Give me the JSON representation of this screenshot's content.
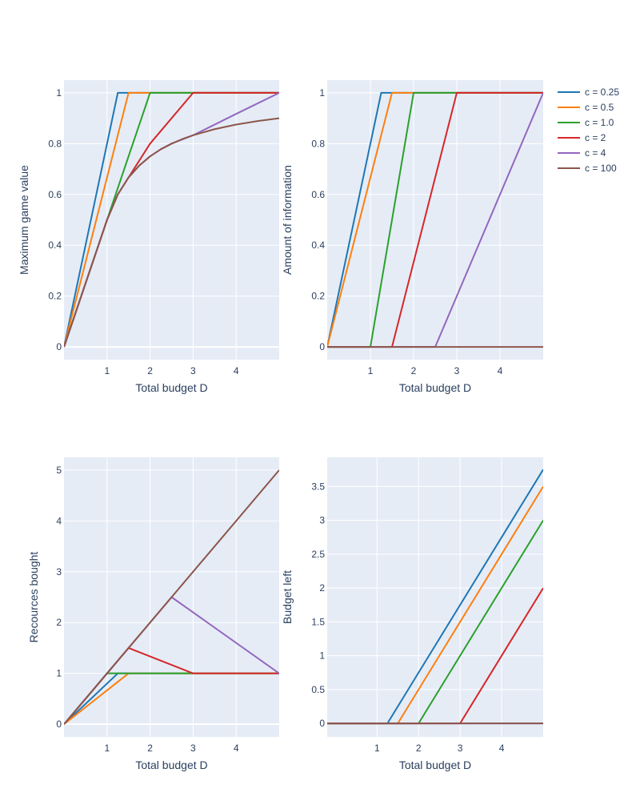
{
  "figure": {
    "legend": [
      {
        "name": "c = 0.25",
        "color": "#1f77b4"
      },
      {
        "name": "c = 0.5",
        "color": "#ff7f0e"
      },
      {
        "name": "c = 1.0",
        "color": "#2ca02c"
      },
      {
        "name": "c = 2",
        "color": "#d62728"
      },
      {
        "name": "c = 4",
        "color": "#9467bd"
      },
      {
        "name": "c = 100",
        "color": "#8c564b"
      }
    ],
    "plot_bg": "#e5ecf6",
    "grid_color": "#ffffff"
  },
  "chart_data": [
    {
      "type": "line",
      "xlabel": "Total budget D",
      "ylabel": "Maximum game value",
      "xlim": [
        0,
        5
      ],
      "ylim": [
        -0.05,
        1.05
      ],
      "xticks": [
        {
          "v": 1,
          "label": "1"
        },
        {
          "v": 2,
          "label": "2"
        },
        {
          "v": 3,
          "label": "3"
        },
        {
          "v": 4,
          "label": "4"
        }
      ],
      "yticks": [
        {
          "v": 0,
          "label": "0"
        },
        {
          "v": 0.2,
          "label": "0.2"
        },
        {
          "v": 0.4,
          "label": "0.4"
        },
        {
          "v": 0.6,
          "label": "0.6"
        },
        {
          "v": 0.8,
          "label": "0.8"
        },
        {
          "v": 1,
          "label": "1"
        }
      ],
      "series": [
        {
          "name": "c = 0.25",
          "x": [
            0,
            1.25,
            5
          ],
          "y": [
            0,
            1,
            1
          ]
        },
        {
          "name": "c = 0.5",
          "x": [
            0,
            1.5,
            5
          ],
          "y": [
            0,
            1,
            1
          ]
        },
        {
          "name": "c = 1.0",
          "x": [
            0,
            1,
            2,
            5
          ],
          "y": [
            0,
            0.5,
            1,
            1
          ]
        },
        {
          "name": "c = 2",
          "x": [
            0,
            1,
            1.25,
            1.5,
            2,
            3,
            5
          ],
          "y": [
            0,
            0.5,
            0.6,
            0.667,
            0.8,
            1,
            1
          ]
        },
        {
          "name": "c = 4",
          "x": [
            0,
            1,
            1.25,
            1.5,
            1.75,
            2,
            2.25,
            2.5,
            3,
            4,
            5
          ],
          "y": [
            0,
            0.5,
            0.6,
            0.667,
            0.714,
            0.75,
            0.778,
            0.8,
            0.833,
            0.917,
            1
          ]
        },
        {
          "name": "c = 100",
          "x": [
            0,
            1,
            1.25,
            1.5,
            1.75,
            2,
            2.25,
            2.5,
            2.75,
            3,
            3.5,
            4,
            4.5,
            5
          ],
          "y": [
            0,
            0.5,
            0.6,
            0.667,
            0.714,
            0.75,
            0.778,
            0.8,
            0.818,
            0.833,
            0.857,
            0.875,
            0.889,
            0.9
          ]
        }
      ]
    },
    {
      "type": "line",
      "xlabel": "Total budget D",
      "ylabel": "Amount of information",
      "xlim": [
        0,
        5
      ],
      "ylim": [
        -0.05,
        1.05
      ],
      "xticks": [
        {
          "v": 1,
          "label": "1"
        },
        {
          "v": 2,
          "label": "2"
        },
        {
          "v": 3,
          "label": "3"
        },
        {
          "v": 4,
          "label": "4"
        }
      ],
      "yticks": [
        {
          "v": 0,
          "label": "0"
        },
        {
          "v": 0.2,
          "label": "0.2"
        },
        {
          "v": 0.4,
          "label": "0.4"
        },
        {
          "v": 0.6,
          "label": "0.6"
        },
        {
          "v": 0.8,
          "label": "0.8"
        },
        {
          "v": 1,
          "label": "1"
        }
      ],
      "series": [
        {
          "name": "c = 0.25",
          "x": [
            0,
            1.25,
            5
          ],
          "y": [
            0,
            1,
            1
          ]
        },
        {
          "name": "c = 0.5",
          "x": [
            0,
            1.5,
            5
          ],
          "y": [
            0,
            1,
            1
          ]
        },
        {
          "name": "c = 1.0",
          "x": [
            0,
            1,
            2,
            5
          ],
          "y": [
            0,
            0,
            1,
            1
          ]
        },
        {
          "name": "c = 2",
          "x": [
            0,
            1.5,
            3,
            5
          ],
          "y": [
            0,
            0,
            1,
            1
          ]
        },
        {
          "name": "c = 4",
          "x": [
            0,
            2.5,
            5
          ],
          "y": [
            0,
            0,
            1
          ]
        },
        {
          "name": "c = 100",
          "x": [
            0,
            5
          ],
          "y": [
            0,
            0
          ]
        }
      ]
    },
    {
      "type": "line",
      "xlabel": "Total budget D",
      "ylabel": "Recources bought",
      "xlim": [
        0,
        5
      ],
      "ylim": [
        -0.25,
        5.25
      ],
      "xticks": [
        {
          "v": 1,
          "label": "1"
        },
        {
          "v": 2,
          "label": "2"
        },
        {
          "v": 3,
          "label": "3"
        },
        {
          "v": 4,
          "label": "4"
        }
      ],
      "yticks": [
        {
          "v": 0,
          "label": "0"
        },
        {
          "v": 1,
          "label": "1"
        },
        {
          "v": 2,
          "label": "2"
        },
        {
          "v": 3,
          "label": "3"
        },
        {
          "v": 4,
          "label": "4"
        },
        {
          "v": 5,
          "label": "5"
        }
      ],
      "series": [
        {
          "name": "c = 0.25",
          "x": [
            0,
            1.25,
            5
          ],
          "y": [
            0,
            1,
            1
          ]
        },
        {
          "name": "c = 0.5",
          "x": [
            0,
            1.5,
            5
          ],
          "y": [
            0,
            1,
            1
          ]
        },
        {
          "name": "c = 1.0",
          "x": [
            0,
            1,
            5
          ],
          "y": [
            0,
            1,
            1
          ]
        },
        {
          "name": "c = 2",
          "x": [
            0,
            1.5,
            3,
            5
          ],
          "y": [
            0,
            1.5,
            1,
            1
          ]
        },
        {
          "name": "c = 4",
          "x": [
            0,
            2.5,
            5
          ],
          "y": [
            0,
            2.5,
            1
          ]
        },
        {
          "name": "c = 100",
          "x": [
            0,
            5
          ],
          "y": [
            0,
            5
          ]
        }
      ]
    },
    {
      "type": "line",
      "xlabel": "Total budget D",
      "ylabel": "Budget left",
      "xlim": [
        -0.2,
        5
      ],
      "ylim": [
        -0.2,
        3.93
      ],
      "xticks": [
        {
          "v": 1,
          "label": "1"
        },
        {
          "v": 2,
          "label": "2"
        },
        {
          "v": 3,
          "label": "3"
        },
        {
          "v": 4,
          "label": "4"
        }
      ],
      "yticks": [
        {
          "v": 0,
          "label": "0"
        },
        {
          "v": 0.5,
          "label": "0.5"
        },
        {
          "v": 1,
          "label": "1"
        },
        {
          "v": 1.5,
          "label": "1.5"
        },
        {
          "v": 2,
          "label": "2"
        },
        {
          "v": 2.5,
          "label": "2.5"
        },
        {
          "v": 3,
          "label": "3"
        },
        {
          "v": 3.5,
          "label": "3.5"
        }
      ],
      "series": [
        {
          "name": "c = 0.25",
          "x": [
            -0.2,
            1.25,
            5
          ],
          "y": [
            0,
            0,
            3.75
          ]
        },
        {
          "name": "c = 0.5",
          "x": [
            -0.2,
            1.5,
            5
          ],
          "y": [
            0,
            0,
            3.5
          ]
        },
        {
          "name": "c = 1.0",
          "x": [
            -0.2,
            2,
            5
          ],
          "y": [
            0,
            0,
            3
          ]
        },
        {
          "name": "c = 2",
          "x": [
            -0.2,
            3,
            5
          ],
          "y": [
            0,
            0,
            2
          ]
        },
        {
          "name": "c = 4",
          "x": [
            -0.2,
            5
          ],
          "y": [
            0,
            0
          ]
        },
        {
          "name": "c = 100",
          "x": [
            -0.2,
            5
          ],
          "y": [
            0,
            0
          ]
        }
      ]
    }
  ]
}
